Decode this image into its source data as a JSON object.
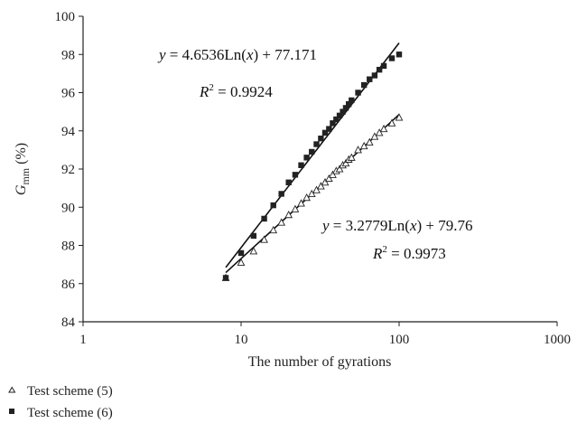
{
  "chart_data": {
    "type": "scatter",
    "x_scale": "log",
    "xlim": [
      1,
      1000
    ],
    "ylim": [
      84,
      100
    ],
    "x_ticks": [
      1,
      10,
      100,
      1000
    ],
    "x_tick_labels": [
      "1",
      "10",
      "100",
      "1000"
    ],
    "y_ticks": [
      84,
      86,
      88,
      90,
      92,
      94,
      96,
      98,
      100
    ],
    "y_tick_labels": [
      "84",
      "86",
      "88",
      "90",
      "92",
      "94",
      "96",
      "98",
      "100"
    ],
    "xlabel": "The number of gyrations",
    "ylabel_main": "G",
    "ylabel_sub": "mm",
    "ylabel_unit": " (%)",
    "grid": false,
    "legend_position": "bottom-left",
    "series": [
      {
        "name": "Test scheme (5)",
        "marker": "open-triangle",
        "color": "#222222",
        "x": [
          8,
          10,
          12,
          14,
          16,
          18,
          20,
          22,
          24,
          26,
          28,
          30,
          32,
          34,
          36,
          38,
          40,
          42,
          44,
          46,
          48,
          50,
          55,
          60,
          65,
          70,
          75,
          80,
          90,
          100
        ],
        "y": [
          86.3,
          87.1,
          87.7,
          88.3,
          88.8,
          89.2,
          89.6,
          89.9,
          90.2,
          90.5,
          90.7,
          90.9,
          91.1,
          91.3,
          91.5,
          91.7,
          91.9,
          92.0,
          92.2,
          92.3,
          92.5,
          92.6,
          93.0,
          93.2,
          93.4,
          93.7,
          93.9,
          94.1,
          94.4,
          94.7
        ],
        "trendline": {
          "a": 3.2779,
          "b": 79.76,
          "x_range": [
            8,
            100
          ]
        },
        "equation_y": "y",
        "equation_mid": " = 3.2779Ln(",
        "equation_x": "x",
        "equation_end": ") + 79.76",
        "r2_label": "R",
        "r2_sup": "2",
        "r2_value": " = 0.9973"
      },
      {
        "name": "Test scheme (6)",
        "marker": "filled-square",
        "color": "#222222",
        "x": [
          8,
          10,
          12,
          14,
          16,
          18,
          20,
          22,
          24,
          26,
          28,
          30,
          32,
          34,
          36,
          38,
          40,
          42,
          44,
          46,
          48,
          50,
          55,
          60,
          65,
          70,
          75,
          80,
          90,
          100
        ],
        "y": [
          86.3,
          87.6,
          88.5,
          89.4,
          90.1,
          90.7,
          91.3,
          91.7,
          92.2,
          92.6,
          92.9,
          93.3,
          93.6,
          93.9,
          94.1,
          94.4,
          94.6,
          94.8,
          95.0,
          95.2,
          95.4,
          95.6,
          96.0,
          96.4,
          96.7,
          96.9,
          97.2,
          97.4,
          97.8,
          98.0
        ],
        "trendline": {
          "a": 4.6536,
          "b": 77.171,
          "x_range": [
            8,
            100
          ]
        },
        "equation_y": "y",
        "equation_mid": " = 4.6536Ln(",
        "equation_x": "x",
        "equation_end": ") + 77.171",
        "r2_label": "R",
        "r2_sup": "2",
        "r2_value": " = 0.9924"
      }
    ]
  }
}
